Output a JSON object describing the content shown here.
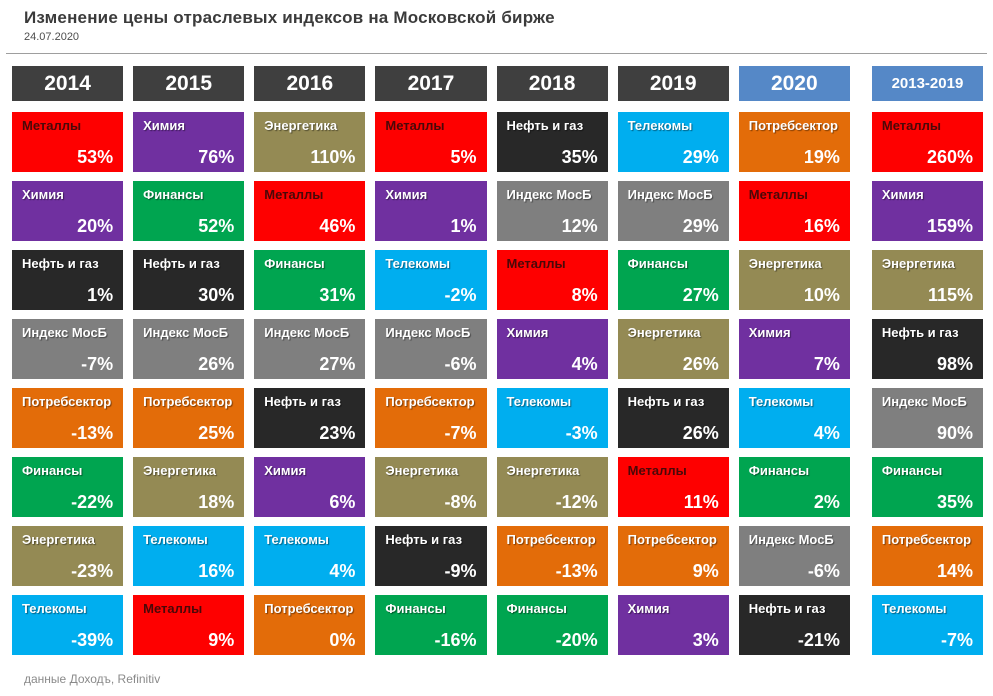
{
  "header": {
    "title": "Изменение цены отраслевых индексов на Московской бирже",
    "date": "24.07.2020"
  },
  "footer": {
    "source": "данные Доходъ, Refinitiv"
  },
  "palette": {
    "red": "#fe0000",
    "purple": "#7030a0",
    "dark": "#282828",
    "gray": "#7f7f7f",
    "orange": "#e36c09",
    "green": "#00a550",
    "olive": "#948a54",
    "cyan": "#00aeef",
    "header_dark": "#3f3f3f",
    "header_blue": "#5588c7",
    "red_label_text": "#4a0808"
  },
  "chart_data": {
    "type": "table",
    "title": "Изменение цены отраслевых индексов на Московской бирже",
    "date": "24.07.2020",
    "source": "данные Доходъ, Refinitiv",
    "sector_colors": {
      "Металлы": "red",
      "Химия": "purple",
      "Нефть и газ": "dark",
      "Индекс МосБ": "gray",
      "Потребсектор": "orange",
      "Финансы": "green",
      "Энергетика": "olive",
      "Телекомы": "cyan"
    },
    "columns": [
      {
        "year": "2014",
        "header_style": "dark",
        "summary": false,
        "cells": [
          {
            "sector": "Металлы",
            "value": "53%",
            "color": "red"
          },
          {
            "sector": "Химия",
            "value": "20%",
            "color": "purple"
          },
          {
            "sector": "Нефть и газ",
            "value": "1%",
            "color": "dark"
          },
          {
            "sector": "Индекс МосБ",
            "value": "-7%",
            "color": "gray"
          },
          {
            "sector": "Потребсектор",
            "value": "-13%",
            "color": "orange"
          },
          {
            "sector": "Финансы",
            "value": "-22%",
            "color": "green"
          },
          {
            "sector": "Энергетика",
            "value": "-23%",
            "color": "olive"
          },
          {
            "sector": "Телекомы",
            "value": "-39%",
            "color": "cyan"
          }
        ]
      },
      {
        "year": "2015",
        "header_style": "dark",
        "summary": false,
        "cells": [
          {
            "sector": "Химия",
            "value": "76%",
            "color": "purple"
          },
          {
            "sector": "Финансы",
            "value": "52%",
            "color": "green"
          },
          {
            "sector": "Нефть и газ",
            "value": "30%",
            "color": "dark"
          },
          {
            "sector": "Индекс МосБ",
            "value": "26%",
            "color": "gray"
          },
          {
            "sector": "Потребсектор",
            "value": "25%",
            "color": "orange"
          },
          {
            "sector": "Энергетика",
            "value": "18%",
            "color": "olive"
          },
          {
            "sector": "Телекомы",
            "value": "16%",
            "color": "cyan"
          },
          {
            "sector": "Металлы",
            "value": "9%",
            "color": "red"
          }
        ]
      },
      {
        "year": "2016",
        "header_style": "dark",
        "summary": false,
        "cells": [
          {
            "sector": "Энергетика",
            "value": "110%",
            "color": "olive"
          },
          {
            "sector": "Металлы",
            "value": "46%",
            "color": "red"
          },
          {
            "sector": "Финансы",
            "value": "31%",
            "color": "green"
          },
          {
            "sector": "Индекс МосБ",
            "value": "27%",
            "color": "gray"
          },
          {
            "sector": "Нефть и газ",
            "value": "23%",
            "color": "dark"
          },
          {
            "sector": "Химия",
            "value": "6%",
            "color": "purple"
          },
          {
            "sector": "Телекомы",
            "value": "4%",
            "color": "cyan"
          },
          {
            "sector": "Потребсектор",
            "value": "0%",
            "color": "orange"
          }
        ]
      },
      {
        "year": "2017",
        "header_style": "dark",
        "summary": false,
        "cells": [
          {
            "sector": "Металлы",
            "value": "5%",
            "color": "red"
          },
          {
            "sector": "Химия",
            "value": "1%",
            "color": "purple"
          },
          {
            "sector": "Телекомы",
            "value": "-2%",
            "color": "cyan"
          },
          {
            "sector": "Индекс МосБ",
            "value": "-6%",
            "color": "gray"
          },
          {
            "sector": "Потребсектор",
            "value": "-7%",
            "color": "orange"
          },
          {
            "sector": "Энергетика",
            "value": "-8%",
            "color": "olive"
          },
          {
            "sector": "Нефть и газ",
            "value": "-9%",
            "color": "dark"
          },
          {
            "sector": "Финансы",
            "value": "-16%",
            "color": "green"
          }
        ]
      },
      {
        "year": "2018",
        "header_style": "dark",
        "summary": false,
        "cells": [
          {
            "sector": "Нефть и газ",
            "value": "35%",
            "color": "dark"
          },
          {
            "sector": "Индекс МосБ",
            "value": "12%",
            "color": "gray"
          },
          {
            "sector": "Металлы",
            "value": "8%",
            "color": "red"
          },
          {
            "sector": "Химия",
            "value": "4%",
            "color": "purple"
          },
          {
            "sector": "Телекомы",
            "value": "-3%",
            "color": "cyan"
          },
          {
            "sector": "Энергетика",
            "value": "-12%",
            "color": "olive"
          },
          {
            "sector": "Потребсектор",
            "value": "-13%",
            "color": "orange"
          },
          {
            "sector": "Финансы",
            "value": "-20%",
            "color": "green"
          }
        ]
      },
      {
        "year": "2019",
        "header_style": "dark",
        "summary": false,
        "cells": [
          {
            "sector": "Телекомы",
            "value": "29%",
            "color": "cyan"
          },
          {
            "sector": "Индекс МосБ",
            "value": "29%",
            "color": "gray"
          },
          {
            "sector": "Финансы",
            "value": "27%",
            "color": "green"
          },
          {
            "sector": "Энергетика",
            "value": "26%",
            "color": "olive"
          },
          {
            "sector": "Нефть и газ",
            "value": "26%",
            "color": "dark"
          },
          {
            "sector": "Металлы",
            "value": "11%",
            "color": "red"
          },
          {
            "sector": "Потребсектор",
            "value": "9%",
            "color": "orange"
          },
          {
            "sector": "Химия",
            "value": "3%",
            "color": "purple"
          }
        ]
      },
      {
        "year": "2020",
        "header_style": "blue",
        "summary": false,
        "cells": [
          {
            "sector": "Потребсектор",
            "value": "19%",
            "color": "orange"
          },
          {
            "sector": "Металлы",
            "value": "16%",
            "color": "red"
          },
          {
            "sector": "Энергетика",
            "value": "10%",
            "color": "olive"
          },
          {
            "sector": "Химия",
            "value": "7%",
            "color": "purple"
          },
          {
            "sector": "Телекомы",
            "value": "4%",
            "color": "cyan"
          },
          {
            "sector": "Финансы",
            "value": "2%",
            "color": "green"
          },
          {
            "sector": "Индекс МосБ",
            "value": "-6%",
            "color": "gray"
          },
          {
            "sector": "Нефть и газ",
            "value": "-21%",
            "color": "dark"
          }
        ]
      },
      {
        "year": "2013-2019",
        "header_style": "blue",
        "summary": true,
        "cells": [
          {
            "sector": "Металлы",
            "value": "260%",
            "color": "red"
          },
          {
            "sector": "Химия",
            "value": "159%",
            "color": "purple"
          },
          {
            "sector": "Энергетика",
            "value": "115%",
            "color": "olive"
          },
          {
            "sector": "Нефть и газ",
            "value": "98%",
            "color": "dark"
          },
          {
            "sector": "Индекс МосБ",
            "value": "90%",
            "color": "gray"
          },
          {
            "sector": "Финансы",
            "value": "35%",
            "color": "green"
          },
          {
            "sector": "Потребсектор",
            "value": "14%",
            "color": "orange"
          },
          {
            "sector": "Телекомы",
            "value": "-7%",
            "color": "cyan"
          }
        ]
      }
    ]
  }
}
